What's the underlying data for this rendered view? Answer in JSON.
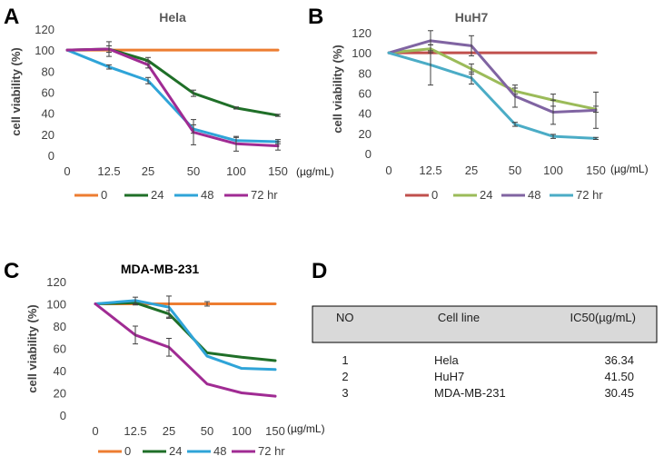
{
  "panel_labels": {
    "a": "A",
    "b": "B",
    "c": "C",
    "d": "D"
  },
  "chart_data": [
    {
      "panel": "A",
      "type": "line",
      "title": "Hela",
      "xlabel": "(µg/mL)",
      "ylabel": "cell viability (%)",
      "categories": [
        "0",
        "12.5",
        "25",
        "50",
        "100",
        "150"
      ],
      "ylim": [
        0,
        120
      ],
      "yticks": [
        0,
        20,
        40,
        60,
        80,
        100,
        120
      ],
      "series": [
        {
          "name": "0",
          "color": "#ED7D31",
          "values": [
            100,
            100,
            100,
            100,
            100,
            100
          ],
          "errors": [
            0,
            0,
            0,
            0,
            0,
            0
          ]
        },
        {
          "name": "24",
          "color": "#1F6F28",
          "values": [
            100,
            101,
            90,
            59,
            45,
            38
          ],
          "errors": [
            0,
            3,
            3,
            3,
            1,
            1
          ]
        },
        {
          "name": "48",
          "color": "#2FA4D8",
          "values": [
            100,
            84,
            71,
            25,
            14,
            13
          ],
          "errors": [
            0,
            2,
            3,
            4,
            3,
            2
          ]
        },
        {
          "name": "72 hr",
          "color": "#A02B93",
          "values": [
            100,
            101,
            86,
            22,
            11,
            9
          ],
          "errors": [
            0,
            7,
            3,
            12,
            7,
            4
          ]
        }
      ],
      "legend": [
        "0",
        "24",
        "48",
        "72 hr"
      ]
    },
    {
      "panel": "B",
      "type": "line",
      "title": "HuH7",
      "xlabel": "(µg/mL)",
      "ylabel": "cell viability (%)",
      "categories": [
        "0",
        "12.5",
        "25",
        "50",
        "100",
        "150"
      ],
      "ylim": [
        0,
        120
      ],
      "yticks": [
        0,
        20,
        40,
        60,
        80,
        100,
        120
      ],
      "series": [
        {
          "name": "0",
          "color": "#C0504D",
          "values": [
            100,
            100,
            100,
            100,
            100,
            100
          ],
          "errors": [
            0,
            0,
            0,
            0,
            0,
            0
          ]
        },
        {
          "name": "24",
          "color": "#9BBB59",
          "values": [
            100,
            104,
            84,
            62,
            53,
            44
          ],
          "errors": [
            0,
            4,
            5,
            3,
            6,
            3
          ]
        },
        {
          "name": "48",
          "color": "#8064A2",
          "values": [
            100,
            112,
            107,
            57,
            41,
            43
          ],
          "errors": [
            0,
            10,
            10,
            11,
            12,
            18
          ]
        },
        {
          "name": "72 hr",
          "color": "#4BACC6",
          "values": [
            100,
            88,
            75,
            29,
            17,
            15
          ],
          "errors": [
            0,
            20,
            6,
            2,
            2,
            1
          ]
        }
      ],
      "legend": [
        "0",
        "24",
        "48",
        "72 hr"
      ]
    },
    {
      "panel": "C",
      "type": "line",
      "title": "MDA-MB-231",
      "xlabel": "(µg/mL)",
      "ylabel": "cell viability (%)",
      "categories": [
        "0",
        "12.5",
        "25",
        "50",
        "100",
        "150"
      ],
      "ylim": [
        0,
        120
      ],
      "yticks": [
        0,
        20,
        40,
        60,
        80,
        100,
        120
      ],
      "series": [
        {
          "name": "0",
          "color": "#ED7D31",
          "values": [
            100,
            100,
            100,
            100,
            100,
            100
          ],
          "errors": [
            0,
            0,
            0,
            2,
            0,
            0
          ]
        },
        {
          "name": "24",
          "color": "#1F6F28",
          "values": [
            100,
            101,
            91,
            56,
            52,
            49
          ],
          "errors": [
            0,
            2,
            3,
            0,
            0,
            0
          ]
        },
        {
          "name": "48",
          "color": "#2FA4D8",
          "values": [
            100,
            103,
            97,
            53,
            42,
            41
          ],
          "errors": [
            0,
            3,
            10,
            0,
            0,
            0
          ]
        },
        {
          "name": "72 hr",
          "color": "#A02B93",
          "values": [
            100,
            72,
            61,
            28,
            20,
            17
          ],
          "errors": [
            0,
            8,
            8,
            0,
            0,
            0
          ]
        }
      ],
      "legend": [
        "0",
        "24",
        "48",
        "72 hr"
      ]
    },
    {
      "panel": "D",
      "type": "table",
      "columns": [
        "NO",
        "Cell line",
        "IC50(µg/mL)"
      ],
      "rows": [
        [
          "1",
          "Hela",
          "36.34"
        ],
        [
          "2",
          "HuH7",
          "41.50"
        ],
        [
          "3",
          "MDA-MB-231",
          "30.45"
        ]
      ]
    }
  ]
}
